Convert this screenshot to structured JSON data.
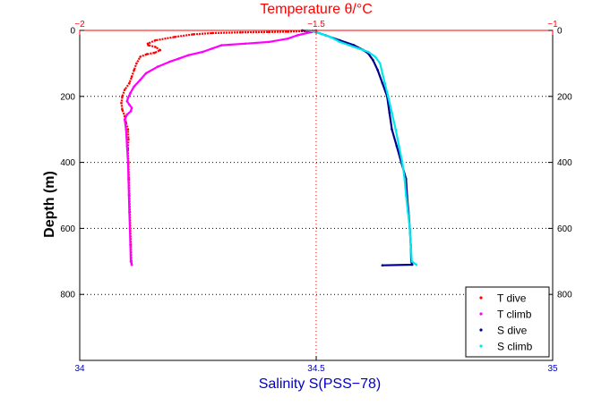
{
  "chart_data": {
    "type": "scatter",
    "top_axis": {
      "label": "Temperature θ/°C",
      "range": [
        -2,
        -1
      ],
      "ticks": [
        {
          "value": -2,
          "label": "−2"
        },
        {
          "value": -1.5,
          "label": "−1.5"
        },
        {
          "value": -1,
          "label": "−1"
        }
      ],
      "color": "#ff0000"
    },
    "bottom_axis": {
      "label": "Salinity S(PSS−78)",
      "range": [
        34,
        35
      ],
      "ticks": [
        {
          "value": 34,
          "label": "34"
        },
        {
          "value": 34.5,
          "label": "34.5"
        },
        {
          "value": 35,
          "label": "35"
        }
      ],
      "color": "#0000cc"
    },
    "y_axis": {
      "label": "Depth (m)",
      "range": [
        0,
        1000
      ],
      "inverted": true,
      "ticks": [
        {
          "value": 0,
          "label": "0"
        },
        {
          "value": 200,
          "label": "200"
        },
        {
          "value": 400,
          "label": "400"
        },
        {
          "value": 600,
          "label": "600"
        },
        {
          "value": 800,
          "label": "800"
        }
      ]
    },
    "grid": "horizontal dotted at y ticks; vertical dotted red at x = 34.5",
    "legend_position": "bottom-right",
    "series": [
      {
        "name": "T dive",
        "axis": "temperature",
        "color": "#ff0000",
        "points": [
          [
            -1.5,
            0
          ],
          [
            -1.52,
            2
          ],
          [
            -1.56,
            4
          ],
          [
            -1.6,
            5
          ],
          [
            -1.66,
            6
          ],
          [
            -1.72,
            8
          ],
          [
            -1.76,
            12
          ],
          [
            -1.8,
            20
          ],
          [
            -1.84,
            30
          ],
          [
            -1.856,
            40
          ],
          [
            -1.855,
            45
          ],
          [
            -1.84,
            50
          ],
          [
            -1.83,
            60
          ],
          [
            -1.842,
            68
          ],
          [
            -1.858,
            72
          ],
          [
            -1.872,
            80
          ],
          [
            -1.88,
            100
          ],
          [
            -1.885,
            120
          ],
          [
            -1.89,
            140
          ],
          [
            -1.895,
            160
          ],
          [
            -1.905,
            180
          ],
          [
            -1.91,
            200
          ],
          [
            -1.912,
            220
          ],
          [
            -1.91,
            240
          ],
          [
            -1.905,
            260
          ],
          [
            -1.902,
            280
          ],
          [
            -1.898,
            300
          ],
          [
            -1.897,
            330
          ],
          [
            -1.898,
            360
          ],
          [
            -1.897,
            400
          ],
          [
            -1.896,
            450
          ],
          [
            -1.895,
            500
          ],
          [
            -1.894,
            550
          ],
          [
            -1.893,
            600
          ],
          [
            -1.892,
            650
          ],
          [
            -1.891,
            700
          ],
          [
            -1.89,
            710
          ]
        ]
      },
      {
        "name": "T climb",
        "axis": "temperature",
        "color": "#ff00ff",
        "points": [
          [
            -1.89,
            710
          ],
          [
            -1.892,
            700
          ],
          [
            -1.893,
            650
          ],
          [
            -1.894,
            600
          ],
          [
            -1.895,
            550
          ],
          [
            -1.896,
            500
          ],
          [
            -1.897,
            450
          ],
          [
            -1.898,
            400
          ],
          [
            -1.9,
            350
          ],
          [
            -1.902,
            300
          ],
          [
            -1.905,
            270
          ],
          [
            -1.9,
            255
          ],
          [
            -1.892,
            245
          ],
          [
            -1.89,
            235
          ],
          [
            -1.895,
            225
          ],
          [
            -1.9,
            215
          ],
          [
            -1.898,
            205
          ],
          [
            -1.893,
            190
          ],
          [
            -1.885,
            170
          ],
          [
            -1.872,
            150
          ],
          [
            -1.86,
            130
          ],
          [
            -1.835,
            110
          ],
          [
            -1.81,
            95
          ],
          [
            -1.79,
            85
          ],
          [
            -1.77,
            75
          ],
          [
            -1.74,
            65
          ],
          [
            -1.72,
            55
          ],
          [
            -1.7,
            45
          ],
          [
            -1.65,
            40
          ],
          [
            -1.6,
            35
          ],
          [
            -1.56,
            25
          ],
          [
            -1.54,
            15
          ],
          [
            -1.51,
            5
          ],
          [
            -1.5,
            0
          ]
        ]
      },
      {
        "name": "S dive",
        "axis": "salinity",
        "color": "#00008b",
        "points": [
          [
            34.47,
            0
          ],
          [
            34.5,
            5
          ],
          [
            34.52,
            15
          ],
          [
            34.55,
            30
          ],
          [
            34.58,
            45
          ],
          [
            34.6,
            60
          ],
          [
            34.61,
            70
          ],
          [
            34.62,
            90
          ],
          [
            34.63,
            120
          ],
          [
            34.64,
            160
          ],
          [
            34.65,
            200
          ],
          [
            34.655,
            250
          ],
          [
            34.66,
            300
          ],
          [
            34.67,
            350
          ],
          [
            34.68,
            400
          ],
          [
            34.69,
            450
          ],
          [
            34.692,
            500
          ],
          [
            34.695,
            550
          ],
          [
            34.698,
            600
          ],
          [
            34.7,
            650
          ],
          [
            34.701,
            700
          ],
          [
            34.703,
            710
          ],
          [
            34.64,
            712
          ]
        ]
      },
      {
        "name": "S climb",
        "axis": "salinity",
        "color": "#00e5ee",
        "points": [
          [
            34.712,
            710
          ],
          [
            34.702,
            700
          ],
          [
            34.7,
            650
          ],
          [
            34.698,
            600
          ],
          [
            34.694,
            550
          ],
          [
            34.69,
            500
          ],
          [
            34.687,
            450
          ],
          [
            34.682,
            400
          ],
          [
            34.675,
            350
          ],
          [
            34.668,
            300
          ],
          [
            34.66,
            250
          ],
          [
            34.652,
            200
          ],
          [
            34.645,
            160
          ],
          [
            34.64,
            130
          ],
          [
            34.635,
            100
          ],
          [
            34.625,
            80
          ],
          [
            34.61,
            65
          ],
          [
            34.59,
            55
          ],
          [
            34.57,
            45
          ],
          [
            34.55,
            35
          ],
          [
            34.53,
            20
          ],
          [
            34.51,
            10
          ],
          [
            34.5,
            5
          ],
          [
            34.48,
            0
          ]
        ]
      }
    ]
  }
}
